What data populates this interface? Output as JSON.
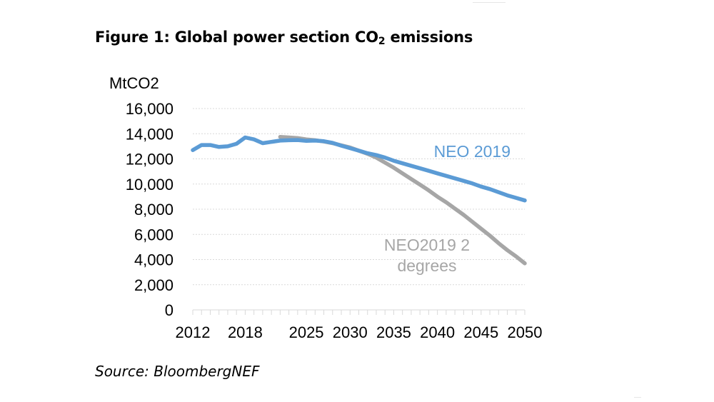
{
  "title": {
    "prefix": "Figure 1: Global power section CO",
    "subscript": "2",
    "suffix": " emissions"
  },
  "source": "Source: BloombergNEF",
  "chart_data": {
    "type": "line",
    "title": "Figure 1: Global power section CO2 emissions",
    "ylabel": "MtCO2",
    "xlabel": "",
    "xlim": [
      2012,
      2050
    ],
    "ylim": [
      0,
      16000
    ],
    "yticks": [
      0,
      2000,
      4000,
      6000,
      8000,
      10000,
      12000,
      14000,
      16000
    ],
    "ytick_labels": [
      "0",
      "2,000",
      "4,000",
      "6,000",
      "8,000",
      "10,000",
      "12,000",
      "14,000",
      "16,000"
    ],
    "xtick_labels": [
      {
        "year": 2012,
        "label": "2012"
      },
      {
        "year": 2018,
        "label": "2018"
      },
      {
        "year": 2025,
        "label": "2025"
      },
      {
        "year": 2030,
        "label": "2030"
      },
      {
        "year": 2035,
        "label": "2035"
      },
      {
        "year": 2040,
        "label": "2040"
      },
      {
        "year": 2045,
        "label": "2045"
      },
      {
        "year": 2050,
        "label": "2050"
      }
    ],
    "grid": true,
    "series": [
      {
        "name": "NEO2019 2 degrees",
        "label_lines": [
          "NEO2019 2",
          "degrees"
        ],
        "color": "#a6a6a6",
        "points": [
          [
            2022,
            13750
          ],
          [
            2023,
            13700
          ],
          [
            2024,
            13650
          ],
          [
            2025,
            13550
          ],
          [
            2026,
            13480
          ],
          [
            2027,
            13380
          ],
          [
            2028,
            13250
          ],
          [
            2029,
            13080
          ],
          [
            2030,
            12900
          ],
          [
            2031,
            12650
          ],
          [
            2032,
            12400
          ],
          [
            2033,
            12100
          ],
          [
            2034,
            11700
          ],
          [
            2035,
            11300
          ],
          [
            2036,
            10850
          ],
          [
            2037,
            10400
          ],
          [
            2038,
            9950
          ],
          [
            2039,
            9500
          ],
          [
            2040,
            9000
          ],
          [
            2041,
            8550
          ],
          [
            2042,
            8050
          ],
          [
            2043,
            7550
          ],
          [
            2044,
            7000
          ],
          [
            2045,
            6450
          ],
          [
            2046,
            5900
          ],
          [
            2047,
            5300
          ],
          [
            2048,
            4750
          ],
          [
            2049,
            4250
          ],
          [
            2050,
            3700
          ]
        ]
      },
      {
        "name": "NEO 2019",
        "label_lines": [
          "NEO 2019"
        ],
        "color": "#5b9bd5",
        "points": [
          [
            2012,
            12700
          ],
          [
            2013,
            13100
          ],
          [
            2014,
            13100
          ],
          [
            2015,
            12950
          ],
          [
            2016,
            13000
          ],
          [
            2017,
            13200
          ],
          [
            2018,
            13700
          ],
          [
            2019,
            13550
          ],
          [
            2020,
            13250
          ],
          [
            2021,
            13350
          ],
          [
            2022,
            13450
          ],
          [
            2023,
            13480
          ],
          [
            2024,
            13500
          ],
          [
            2025,
            13430
          ],
          [
            2026,
            13450
          ],
          [
            2027,
            13400
          ],
          [
            2028,
            13270
          ],
          [
            2029,
            13050
          ],
          [
            2030,
            12850
          ],
          [
            2031,
            12650
          ],
          [
            2032,
            12450
          ],
          [
            2033,
            12300
          ],
          [
            2034,
            12100
          ],
          [
            2035,
            11850
          ],
          [
            2036,
            11650
          ],
          [
            2037,
            11450
          ],
          [
            2038,
            11250
          ],
          [
            2039,
            11050
          ],
          [
            2040,
            10850
          ],
          [
            2041,
            10650
          ],
          [
            2042,
            10450
          ],
          [
            2043,
            10250
          ],
          [
            2044,
            10050
          ],
          [
            2045,
            9800
          ],
          [
            2046,
            9600
          ],
          [
            2047,
            9350
          ],
          [
            2048,
            9100
          ],
          [
            2049,
            8900
          ],
          [
            2050,
            8700
          ]
        ]
      }
    ]
  }
}
